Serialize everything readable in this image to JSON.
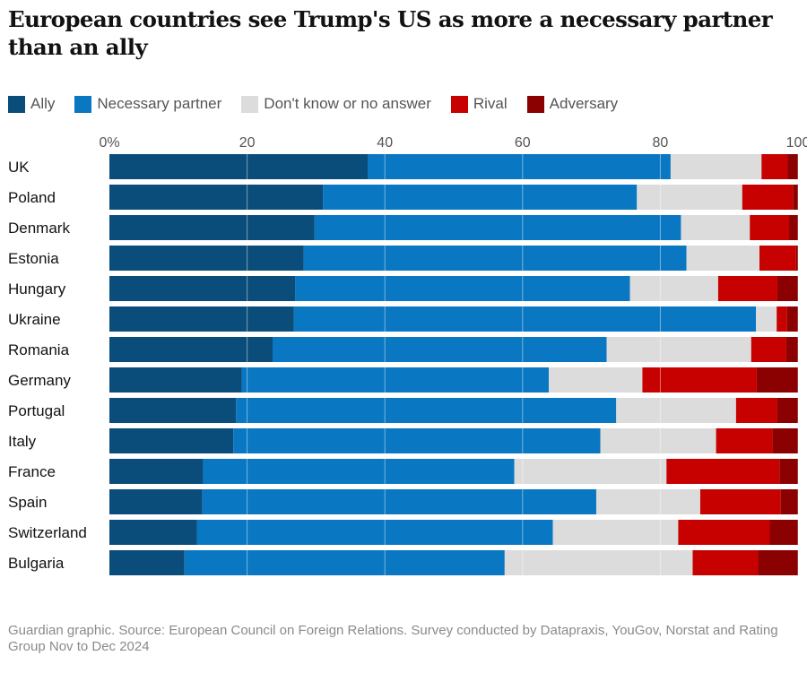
{
  "title": "European countries see Trump's US as more a necessary partner than an ally",
  "source": "Guardian graphic. Source: European Council on Foreign Relations. Survey conducted by Datapraxis, YouGov, Norstat and Rating Group Nov to Dec 2024",
  "colors": {
    "ally": "#0b4d7a",
    "necessary_partner": "#0a77c2",
    "dont_know": "#dcdcdc",
    "rival": "#c70000",
    "adversary": "#8b0000"
  },
  "legend": [
    {
      "label": "Ally",
      "color": "#0b4d7a"
    },
    {
      "label": "Necessary partner",
      "color": "#0a77c2"
    },
    {
      "label": "Don't know or no answer",
      "color": "#dcdcdc"
    },
    {
      "label": "Rival",
      "color": "#c70000"
    },
    {
      "label": "Adversary",
      "color": "#8b0000"
    }
  ],
  "chart_data": {
    "type": "bar",
    "orientation": "horizontal",
    "stacked": true,
    "xlim": [
      0,
      100
    ],
    "x_ticks": [
      "0%",
      "20",
      "40",
      "60",
      "80",
      "100"
    ],
    "x_tick_values": [
      0,
      20,
      40,
      60,
      80,
      100
    ],
    "grid": true,
    "legend_position": "top-left",
    "categories": [
      "UK",
      "Poland",
      "Denmark",
      "Estonia",
      "Hungary",
      "Ukraine",
      "Romania",
      "Germany",
      "Portugal",
      "Italy",
      "France",
      "Spain",
      "Switzerland",
      "Bulgaria"
    ],
    "series": [
      {
        "name": "Ally",
        "color": "#0b4d7a",
        "values": [
          37.5,
          31,
          29.8,
          28.2,
          27,
          26.8,
          23.7,
          19.2,
          18.4,
          18,
          13.6,
          13.5,
          12.7,
          10.9
        ]
      },
      {
        "name": "Necessary partner",
        "color": "#0a77c2",
        "values": [
          44,
          45.6,
          53.2,
          55.6,
          48.6,
          67.1,
          48.5,
          44.6,
          55.2,
          53.3,
          45.2,
          57.2,
          51.7,
          46.5
        ]
      },
      {
        "name": "Don't know or no answer",
        "color": "#dcdcdc",
        "values": [
          13.2,
          15.3,
          10,
          10.6,
          12.8,
          3,
          21,
          13.6,
          17.4,
          16.8,
          22.1,
          15.1,
          18.2,
          27.3
        ]
      },
      {
        "name": "Rival",
        "color": "#c70000",
        "values": [
          3.8,
          7.4,
          5.7,
          5.3,
          8.6,
          1.5,
          5.1,
          16.6,
          6,
          8.2,
          16.4,
          11.7,
          13.3,
          9.5
        ]
      },
      {
        "name": "Adversary",
        "color": "#8b0000",
        "values": [
          1.5,
          0.7,
          1.3,
          0.3,
          3,
          1.6,
          1.7,
          6,
          3,
          3.7,
          2.7,
          2.5,
          4.1,
          5.8
        ]
      }
    ]
  }
}
